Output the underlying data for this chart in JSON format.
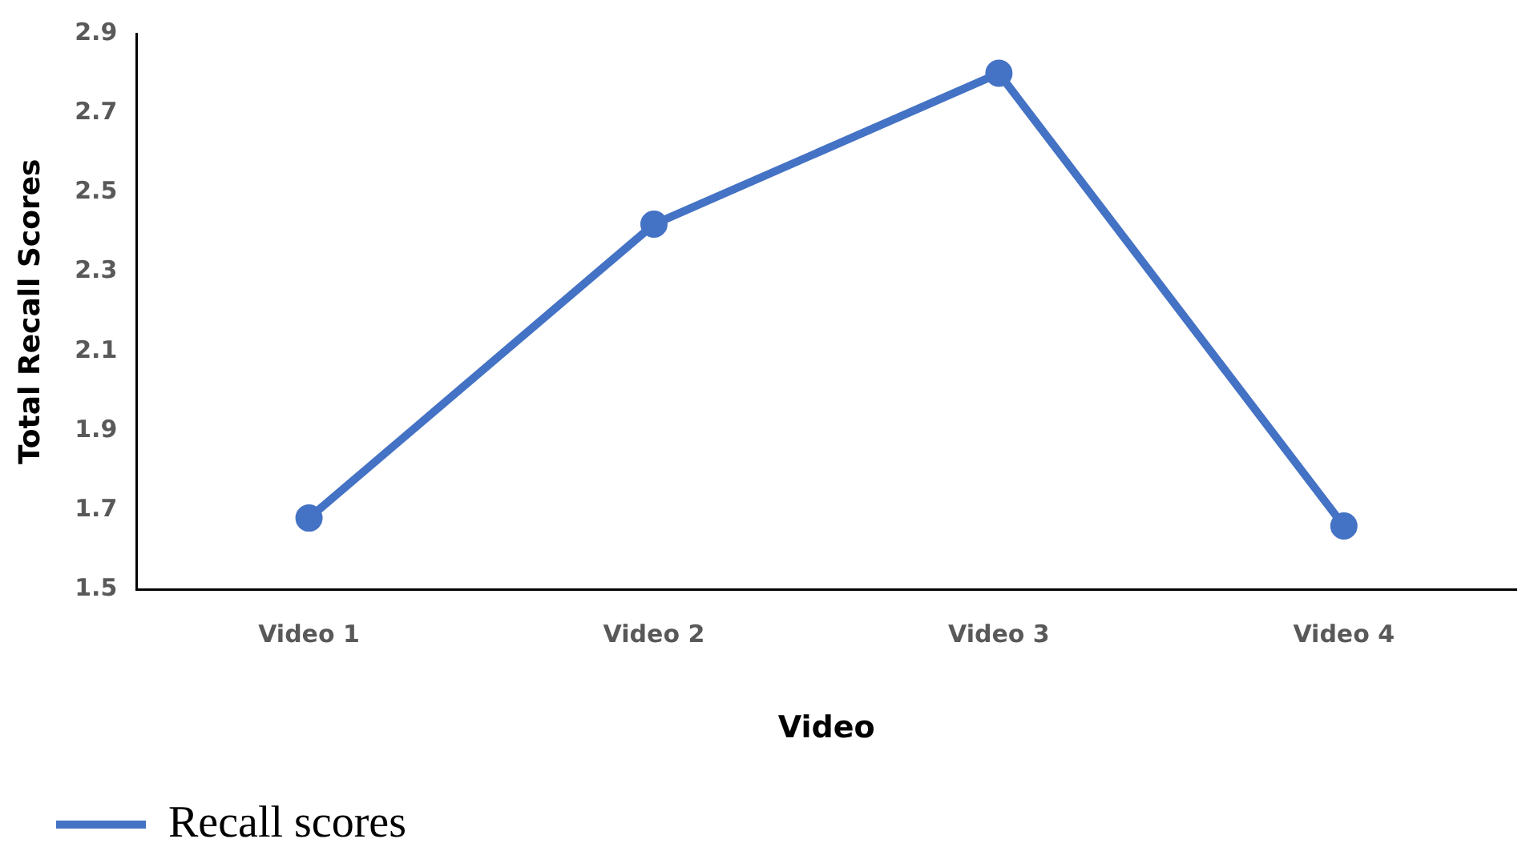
{
  "chart_data": {
    "type": "line",
    "xlabel": "Video",
    "ylabel": "Total Recall Scores",
    "categories": [
      "Video 1",
      "Video 2",
      "Video 3",
      "Video 4"
    ],
    "series": [
      {
        "name": "Recall scores",
        "color": "#4472c4",
        "values": [
          1.68,
          2.42,
          2.8,
          1.66
        ]
      }
    ],
    "ylim": [
      1.5,
      2.9
    ],
    "yticks": [
      1.5,
      1.7,
      1.9,
      2.1,
      2.3,
      2.5,
      2.7,
      2.9
    ],
    "grid": false,
    "legend": "bottom left",
    "marker": "circle",
    "line_style": "solid"
  }
}
